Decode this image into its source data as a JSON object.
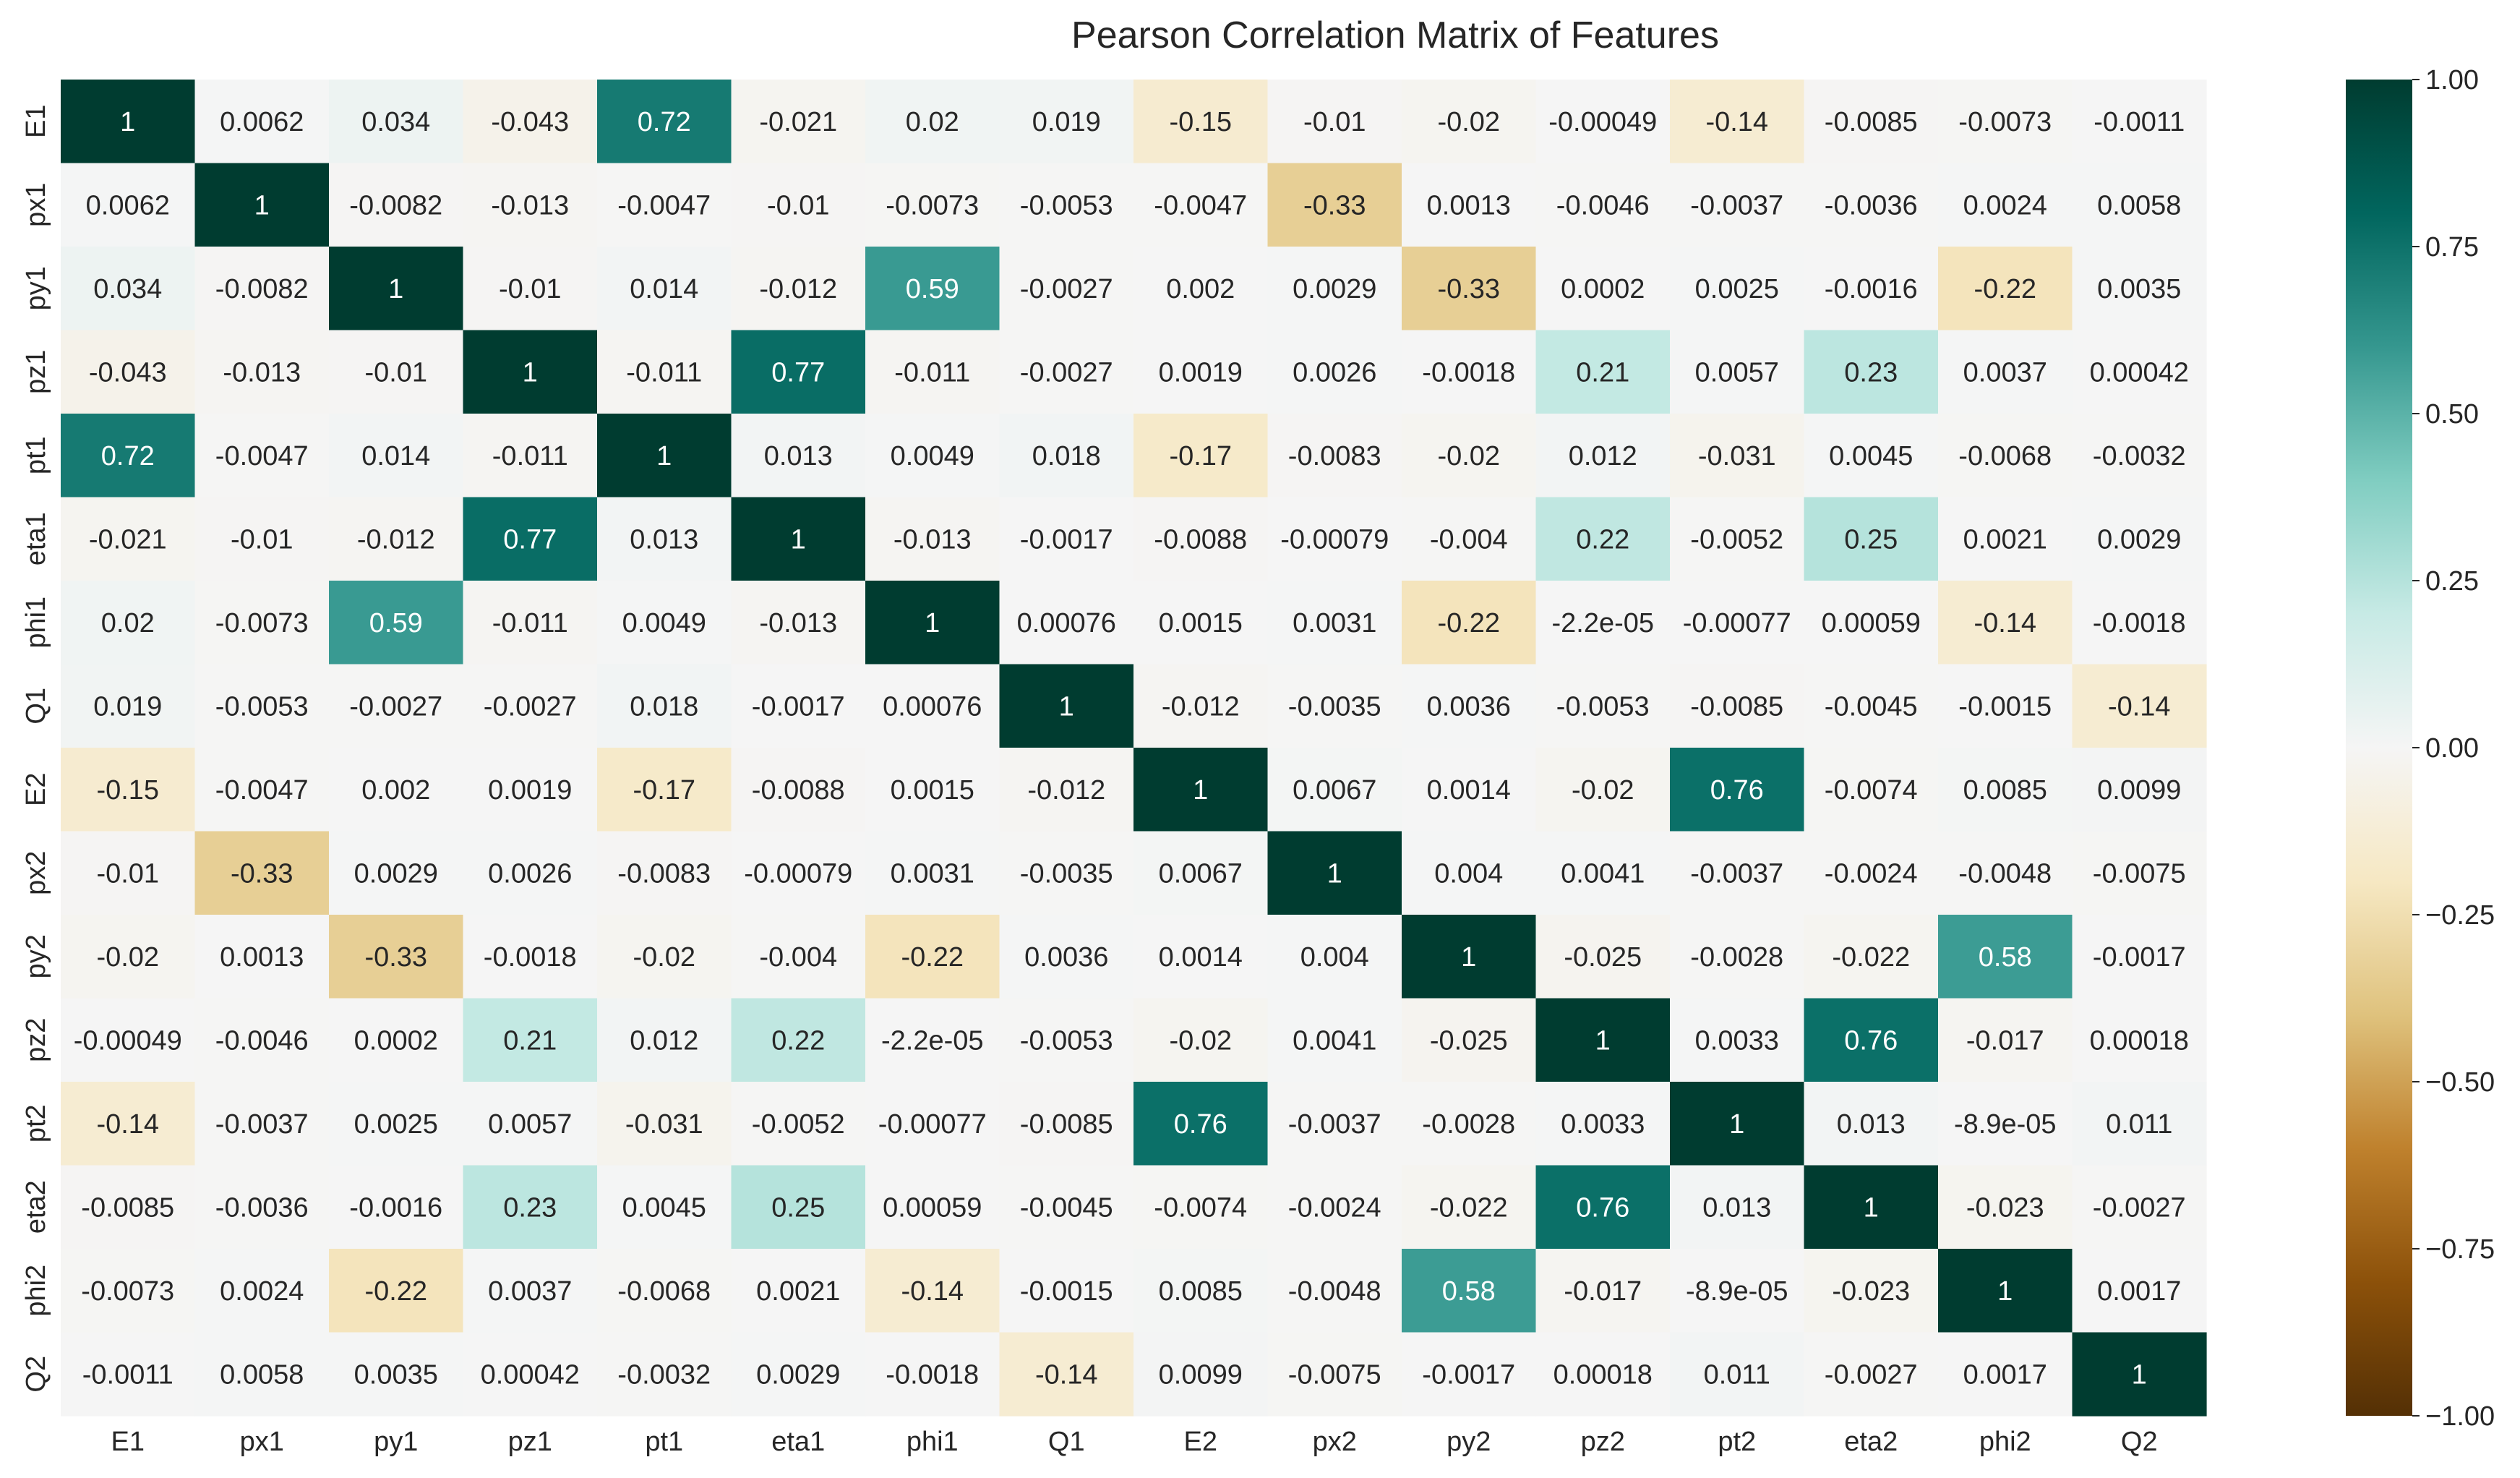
{
  "chart_data": {
    "type": "heatmap",
    "title": "Pearson Correlation Matrix of Features",
    "xlabel": "",
    "ylabel": "",
    "labels": [
      "E1",
      "px1",
      "py1",
      "pz1",
      "pt1",
      "eta1",
      "phi1",
      "Q1",
      "E2",
      "px2",
      "py2",
      "pz2",
      "pt2",
      "eta2",
      "phi2",
      "Q2"
    ],
    "cells": [
      [
        "1",
        "0.0062",
        "0.034",
        "-0.043",
        "0.72",
        "-0.021",
        "0.02",
        "0.019",
        "-0.15",
        "-0.01",
        "-0.02",
        "-0.00049",
        "-0.14",
        "-0.0085",
        "-0.0073",
        "-0.0011"
      ],
      [
        "0.0062",
        "1",
        "-0.0082",
        "-0.013",
        "-0.0047",
        "-0.01",
        "-0.0073",
        "-0.0053",
        "-0.0047",
        "-0.33",
        "0.0013",
        "-0.0046",
        "-0.0037",
        "-0.0036",
        "0.0024",
        "0.0058"
      ],
      [
        "0.034",
        "-0.0082",
        "1",
        "-0.01",
        "0.014",
        "-0.012",
        "0.59",
        "-0.0027",
        "0.002",
        "0.0029",
        "-0.33",
        "0.0002",
        "0.0025",
        "-0.0016",
        "-0.22",
        "0.0035"
      ],
      [
        "-0.043",
        "-0.013",
        "-0.01",
        "1",
        "-0.011",
        "0.77",
        "-0.011",
        "-0.0027",
        "0.0019",
        "0.0026",
        "-0.0018",
        "0.21",
        "0.0057",
        "0.23",
        "0.0037",
        "0.00042"
      ],
      [
        "0.72",
        "-0.0047",
        "0.014",
        "-0.011",
        "1",
        "0.013",
        "0.0049",
        "0.018",
        "-0.17",
        "-0.0083",
        "-0.02",
        "0.012",
        "-0.031",
        "0.0045",
        "-0.0068",
        "-0.0032"
      ],
      [
        "-0.021",
        "-0.01",
        "-0.012",
        "0.77",
        "0.013",
        "1",
        "-0.013",
        "-0.0017",
        "-0.0088",
        "-0.00079",
        "-0.004",
        "0.22",
        "-0.0052",
        "0.25",
        "0.0021",
        "0.0029"
      ],
      [
        "0.02",
        "-0.0073",
        "0.59",
        "-0.011",
        "0.0049",
        "-0.013",
        "1",
        "0.00076",
        "0.0015",
        "0.0031",
        "-0.22",
        "-2.2e-05",
        "-0.00077",
        "0.00059",
        "-0.14",
        "-0.0018"
      ],
      [
        "0.019",
        "-0.0053",
        "-0.0027",
        "-0.0027",
        "0.018",
        "-0.0017",
        "0.00076",
        "1",
        "-0.012",
        "-0.0035",
        "0.0036",
        "-0.0053",
        "-0.0085",
        "-0.0045",
        "-0.0015",
        "-0.14"
      ],
      [
        "-0.15",
        "-0.0047",
        "0.002",
        "0.0019",
        "-0.17",
        "-0.0088",
        "0.0015",
        "-0.012",
        "1",
        "0.0067",
        "0.0014",
        "-0.02",
        "0.76",
        "-0.0074",
        "0.0085",
        "0.0099"
      ],
      [
        "-0.01",
        "-0.33",
        "0.0029",
        "0.0026",
        "-0.0083",
        "-0.00079",
        "0.0031",
        "-0.0035",
        "0.0067",
        "1",
        "0.004",
        "0.0041",
        "-0.0037",
        "-0.0024",
        "-0.0048",
        "-0.0075"
      ],
      [
        "-0.02",
        "0.0013",
        "-0.33",
        "-0.0018",
        "-0.02",
        "-0.004",
        "-0.22",
        "0.0036",
        "0.0014",
        "0.004",
        "1",
        "-0.025",
        "-0.0028",
        "-0.022",
        "0.58",
        "-0.0017"
      ],
      [
        "-0.00049",
        "-0.0046",
        "0.0002",
        "0.21",
        "0.012",
        "0.22",
        "-2.2e-05",
        "-0.0053",
        "-0.02",
        "0.0041",
        "-0.025",
        "1",
        "0.0033",
        "0.76",
        "-0.017",
        "0.00018"
      ],
      [
        "-0.14",
        "-0.0037",
        "0.0025",
        "0.0057",
        "-0.031",
        "-0.0052",
        "-0.00077",
        "-0.0085",
        "0.76",
        "-0.0037",
        "-0.0028",
        "0.0033",
        "1",
        "0.013",
        "-8.9e-05",
        "0.011"
      ],
      [
        "-0.0085",
        "-0.0036",
        "-0.0016",
        "0.23",
        "0.0045",
        "0.25",
        "0.00059",
        "-0.0045",
        "-0.0074",
        "-0.0024",
        "-0.022",
        "0.76",
        "0.013",
        "1",
        "-0.023",
        "-0.0027"
      ],
      [
        "-0.0073",
        "0.0024",
        "-0.22",
        "0.0037",
        "-0.0068",
        "0.0021",
        "-0.14",
        "-0.0015",
        "0.0085",
        "-0.0048",
        "0.58",
        "-0.017",
        "-8.9e-05",
        "-0.023",
        "1",
        "0.0017"
      ],
      [
        "-0.0011",
        "0.0058",
        "0.0035",
        "0.00042",
        "-0.0032",
        "0.0029",
        "-0.0018",
        "-0.14",
        "0.0099",
        "-0.0075",
        "-0.0017",
        "0.00018",
        "0.011",
        "-0.0027",
        "0.0017",
        "1"
      ]
    ],
    "colorbar": {
      "range": [
        -1.0,
        1.0
      ],
      "ticks": [
        "1.00",
        "0.75",
        "0.50",
        "0.25",
        "0.00",
        "−0.25",
        "−0.50",
        "−0.75",
        "−1.00"
      ],
      "colormap": "BrBG",
      "colors": [
        "#543005",
        "#8c510a",
        "#bf812d",
        "#dfc27d",
        "#f6e8c3",
        "#f5f5f5",
        "#c7eae5",
        "#80cdc1",
        "#35978f",
        "#01665e",
        "#003c30"
      ]
    }
  }
}
